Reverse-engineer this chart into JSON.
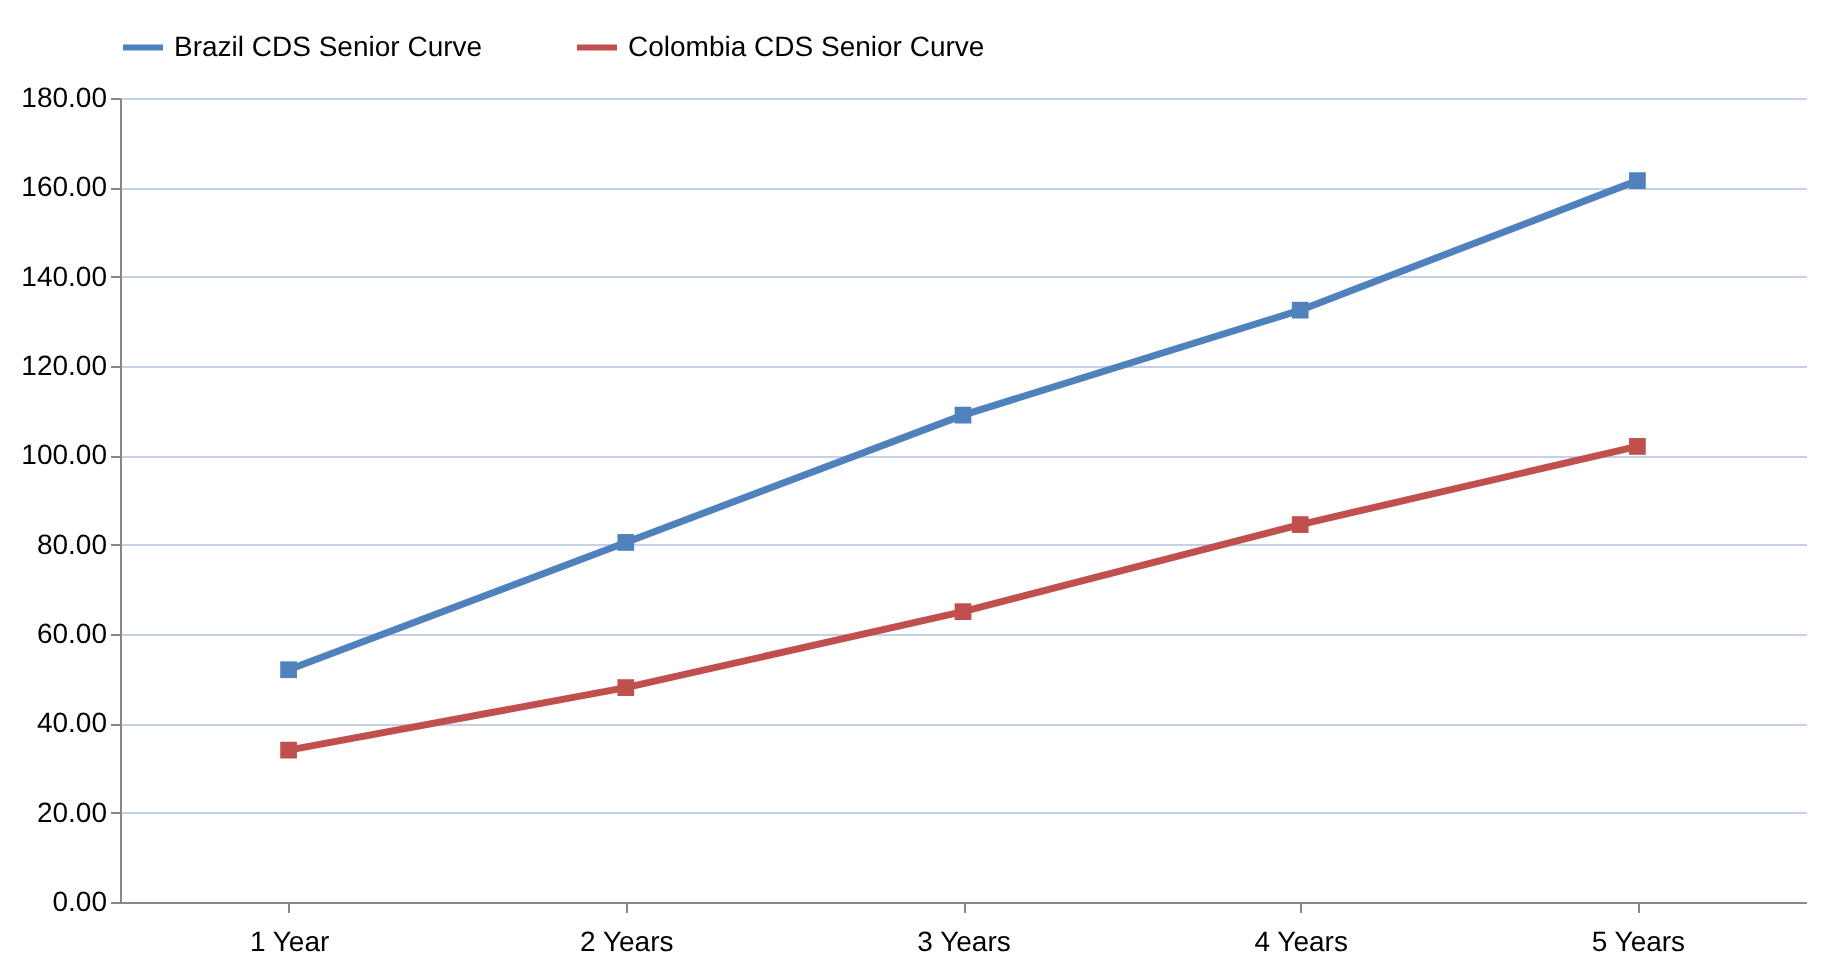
{
  "chart_data": {
    "type": "line",
    "categories": [
      "1 Year",
      "2 Years",
      "3 Years",
      "4 Years",
      "5 Years"
    ],
    "series": [
      {
        "name": "Brazil CDS Senior Curve",
        "color": "#4f81bd",
        "values": [
          52,
          80.5,
          109,
          132.5,
          161.5
        ]
      },
      {
        "name": "Colombia CDS Senior Curve",
        "color": "#c0504d",
        "values": [
          34,
          48,
          65,
          84.5,
          102
        ]
      }
    ],
    "ylim": [
      0,
      180
    ],
    "yticks": [
      {
        "value": 0,
        "label": "0.00"
      },
      {
        "value": 20,
        "label": "20.00"
      },
      {
        "value": 40,
        "label": "40.00"
      },
      {
        "value": 60,
        "label": "60.00"
      },
      {
        "value": 80,
        "label": "80.00"
      },
      {
        "value": 100,
        "label": "100.00"
      },
      {
        "value": 120,
        "label": "120.00"
      },
      {
        "value": 140,
        "label": "140.00"
      },
      {
        "value": 160,
        "label": "160.00"
      },
      {
        "value": 180,
        "label": "180.00"
      }
    ],
    "grid": "y",
    "legend": "top",
    "marker": "square",
    "line_style": "solid"
  }
}
